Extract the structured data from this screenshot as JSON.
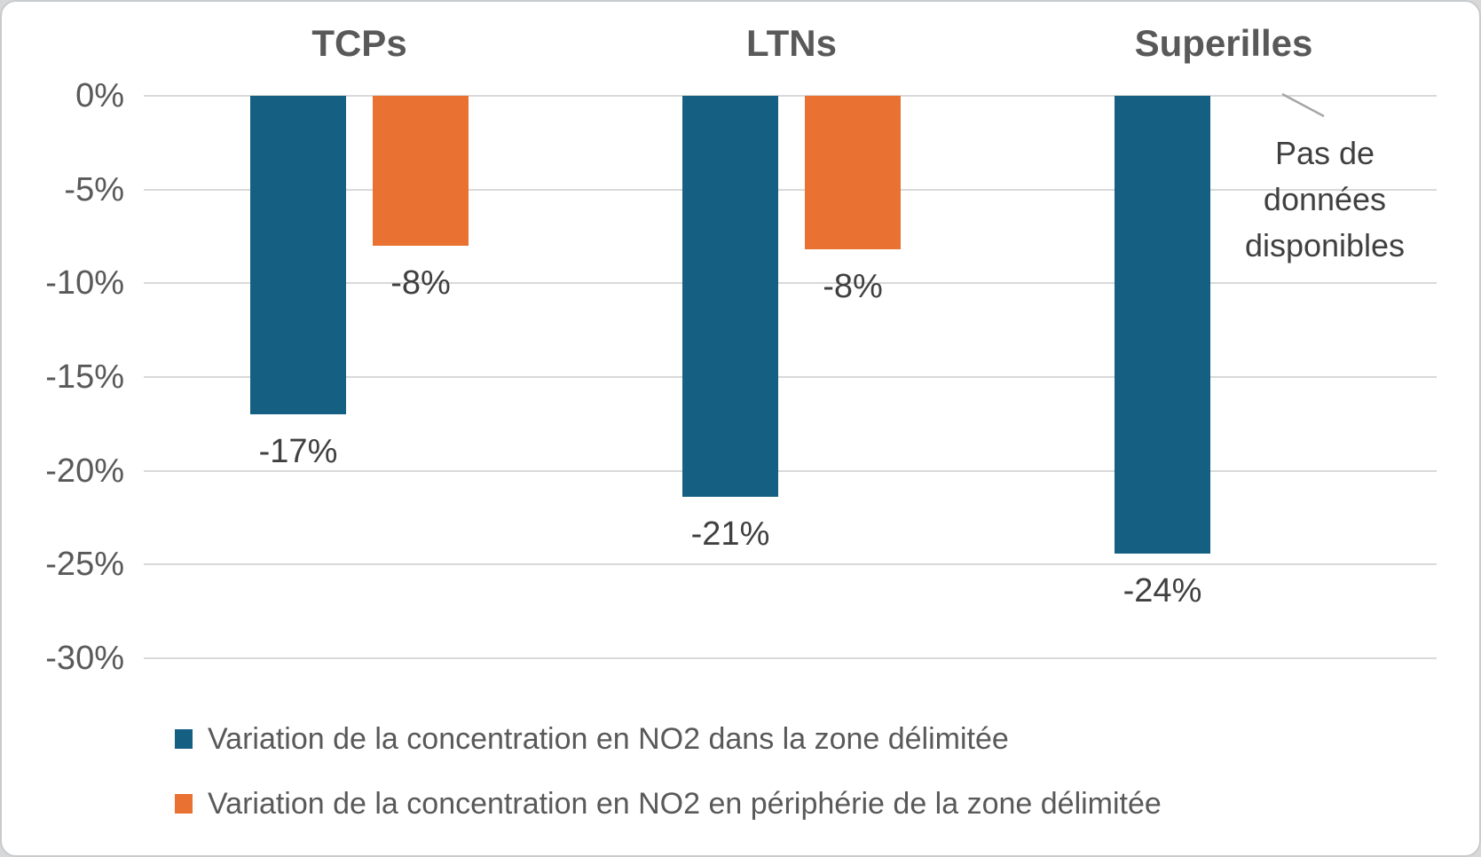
{
  "chart_data": {
    "type": "bar",
    "title": "",
    "categories": [
      "TCPs",
      "LTNs",
      "Superilles"
    ],
    "series": [
      {
        "name": "Variation de la concentration en NO2 dans la zone délimitée",
        "color": "#156082",
        "values": [
          -17,
          -21,
          -24
        ],
        "data_labels": [
          "-17%",
          "-21%",
          "-24%"
        ],
        "plot_values": [
          -17,
          -21.4,
          -24.4
        ]
      },
      {
        "name": "Variation de la concentration en NO2 en périphérie de la zone délimitée",
        "color": "#E97132",
        "values": [
          -8,
          -8,
          null
        ],
        "data_labels": [
          "-8%",
          "-8%",
          null
        ],
        "plot_values": [
          -8,
          -8.2,
          null
        ]
      }
    ],
    "y_axis": {
      "min": -30,
      "max": 0,
      "tick_values": [
        0,
        -5,
        -10,
        -15,
        -20,
        -25,
        -30
      ],
      "tick_labels": [
        "0%",
        "-5%",
        "-10%",
        "-15%",
        "-20%",
        "-25%",
        "-30%"
      ]
    },
    "grid": true,
    "legend_position": "bottom-left",
    "annotation": {
      "text_lines": [
        "Pas de",
        "données",
        "disponibles"
      ],
      "applies_to": "Superilles périphérie (missing orange bar)"
    }
  },
  "colors": {
    "series_in_zone": "#156082",
    "series_periphery": "#E97132",
    "gridline": "#D9D9D9",
    "axis_text": "#595959",
    "category_title_text": "#595959",
    "data_label_text": "#404040",
    "annotation_text": "#404040",
    "leader_line": "#A6A6A6",
    "chart_background": "#FFFFFF",
    "page_background": "#D8D8D8",
    "border": "#C7CBCE"
  }
}
